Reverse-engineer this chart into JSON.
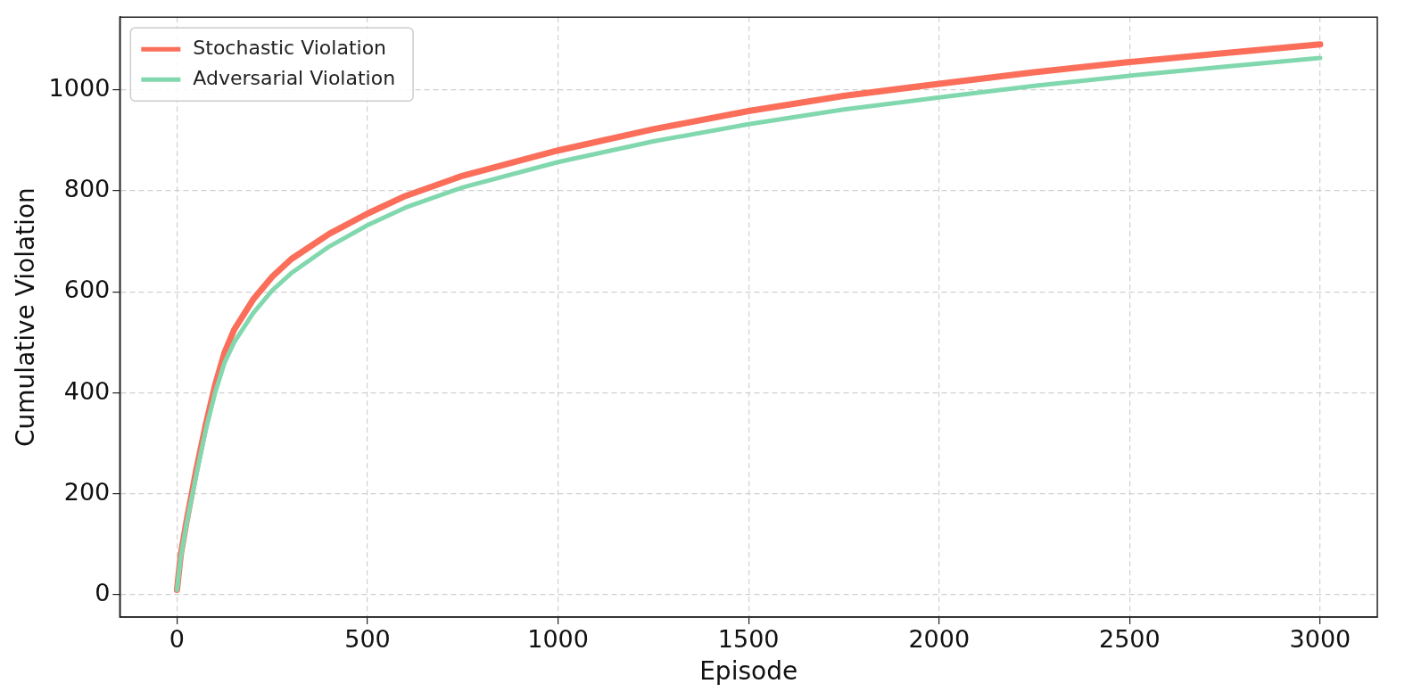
{
  "chart_data": {
    "type": "line",
    "xlabel": "Episode",
    "ylabel": "Cumulative Violation",
    "x": [
      0,
      10,
      25,
      50,
      75,
      100,
      125,
      150,
      200,
      250,
      300,
      400,
      500,
      600,
      750,
      1000,
      1250,
      1500,
      1750,
      2000,
      2250,
      2500,
      2750,
      3000
    ],
    "series": [
      {
        "name": "Stochastic Violation",
        "color": "#fa6e5a",
        "values": [
          10,
          80,
          145,
          245,
          335,
          415,
          480,
          525,
          585,
          630,
          665,
          715,
          755,
          790,
          830,
          880,
          922,
          958,
          988,
          1012,
          1035,
          1055,
          1073,
          1090
        ]
      },
      {
        "name": "Adversarial Violation",
        "color": "#82d8ae",
        "values": [
          10,
          75,
          140,
          235,
          325,
          400,
          460,
          500,
          558,
          603,
          637,
          690,
          732,
          767,
          807,
          857,
          898,
          932,
          961,
          985,
          1008,
          1028,
          1046,
          1063
        ]
      }
    ],
    "xlim": [
      -150,
      3150
    ],
    "xticks": [
      0,
      500,
      1000,
      1500,
      2000,
      2500,
      3000
    ],
    "ylim": [
      -44,
      1144
    ],
    "yticks": [
      0,
      200,
      400,
      600,
      800,
      1000
    ],
    "grid": true,
    "legend": "top left",
    "marker": "none",
    "line_style": "solid"
  }
}
